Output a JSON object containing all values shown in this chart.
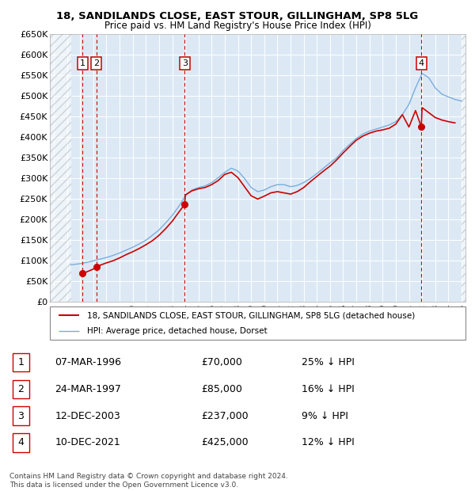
{
  "title": "18, SANDILANDS CLOSE, EAST STOUR, GILLINGHAM, SP8 5LG",
  "subtitle": "Price paid vs. HM Land Registry's House Price Index (HPI)",
  "ylim": [
    0,
    650000
  ],
  "yticks": [
    0,
    50000,
    100000,
    150000,
    200000,
    250000,
    300000,
    350000,
    400000,
    450000,
    500000,
    550000,
    600000,
    650000
  ],
  "ytick_labels": [
    "£0",
    "£50K",
    "£100K",
    "£150K",
    "£200K",
    "£250K",
    "£300K",
    "£350K",
    "£400K",
    "£450K",
    "£500K",
    "£550K",
    "£600K",
    "£650K"
  ],
  "xlim_start": 1993.7,
  "xlim_end": 2025.3,
  "hatch_end": 1995.3,
  "hatch_start_right": 2025.0,
  "background_color": "#dce9f5",
  "grid_color": "#ffffff",
  "transactions": [
    {
      "num": 1,
      "date": "07-MAR-1996",
      "year": 1996.19,
      "price": 70000
    },
    {
      "num": 2,
      "date": "24-MAR-1997",
      "year": 1997.23,
      "price": 85000
    },
    {
      "num": 3,
      "date": "12-DEC-2003",
      "year": 2003.95,
      "price": 237000
    },
    {
      "num": 4,
      "date": "10-DEC-2021",
      "year": 2021.94,
      "price": 425000
    }
  ],
  "transaction_table": [
    {
      "num": 1,
      "date": "07-MAR-1996",
      "price": "£70,000",
      "note": "25% ↓ HPI"
    },
    {
      "num": 2,
      "date": "24-MAR-1997",
      "price": "£85,000",
      "note": "16% ↓ HPI"
    },
    {
      "num": 3,
      "date": "12-DEC-2003",
      "price": "£237,000",
      "note": "9% ↓ HPI"
    },
    {
      "num": 4,
      "date": "10-DEC-2021",
      "price": "£425,000",
      "note": "12% ↓ HPI"
    }
  ],
  "legend_line1": "18, SANDILANDS CLOSE, EAST STOUR, GILLINGHAM, SP8 5LG (detached house)",
  "legend_line2": "HPI: Average price, detached house, Dorset",
  "footer": "Contains HM Land Registry data © Crown copyright and database right 2024.\nThis data is licensed under the Open Government Licence v3.0.",
  "red_color": "#cc0000",
  "blue_color": "#7aadde",
  "marker_box_color": "#cc0000",
  "vline_color": "#cc0000",
  "hpi_line": {
    "years": [
      1995.3,
      1995.5,
      1996.0,
      1996.5,
      1997.0,
      1997.5,
      1998.0,
      1998.5,
      1999.0,
      1999.5,
      2000.0,
      2000.5,
      2001.0,
      2001.5,
      2002.0,
      2002.5,
      2003.0,
      2003.5,
      2004.0,
      2004.5,
      2005.0,
      2005.5,
      2006.0,
      2006.5,
      2007.0,
      2007.5,
      2008.0,
      2008.5,
      2009.0,
      2009.5,
      2010.0,
      2010.5,
      2011.0,
      2011.5,
      2012.0,
      2012.5,
      2013.0,
      2013.5,
      2014.0,
      2014.5,
      2015.0,
      2015.5,
      2016.0,
      2016.5,
      2017.0,
      2017.5,
      2018.0,
      2018.5,
      2019.0,
      2019.5,
      2020.0,
      2020.5,
      2021.0,
      2021.5,
      2022.0,
      2022.5,
      2023.0,
      2023.5,
      2024.0,
      2024.5,
      2025.0
    ],
    "values": [
      90000,
      91000,
      93000,
      96000,
      100000,
      104000,
      108000,
      113000,
      119000,
      126000,
      133000,
      141000,
      150000,
      162000,
      175000,
      192000,
      210000,
      232000,
      258000,
      272000,
      278000,
      282000,
      290000,
      302000,
      315000,
      325000,
      318000,
      300000,
      278000,
      268000,
      272000,
      280000,
      285000,
      285000,
      280000,
      283000,
      290000,
      300000,
      312000,
      325000,
      338000,
      350000,
      368000,
      383000,
      397000,
      408000,
      415000,
      420000,
      425000,
      430000,
      438000,
      455000,
      480000,
      520000,
      555000,
      545000,
      520000,
      505000,
      498000,
      492000,
      488000
    ]
  },
  "price_line": {
    "years": [
      1996.19,
      1996.5,
      1997.0,
      1997.23,
      1997.5,
      1998.0,
      1998.5,
      1999.0,
      1999.5,
      2000.0,
      2000.5,
      2001.0,
      2001.5,
      2002.0,
      2002.5,
      2003.0,
      2003.5,
      2003.95,
      2004.0,
      2004.5,
      2005.0,
      2005.5,
      2006.0,
      2006.5,
      2007.0,
      2007.5,
      2008.0,
      2008.5,
      2009.0,
      2009.5,
      2010.0,
      2010.5,
      2011.0,
      2011.5,
      2012.0,
      2012.5,
      2013.0,
      2013.5,
      2014.0,
      2014.5,
      2015.0,
      2015.5,
      2016.0,
      2016.5,
      2017.0,
      2017.5,
      2018.0,
      2018.5,
      2019.0,
      2019.5,
      2020.0,
      2020.5,
      2021.0,
      2021.5,
      2021.94,
      2022.0,
      2022.5,
      2023.0,
      2023.5,
      2024.0,
      2024.5
    ],
    "values": [
      70000,
      73000,
      80000,
      85000,
      89000,
      95000,
      100000,
      107000,
      115000,
      122000,
      130000,
      139000,
      149000,
      162000,
      178000,
      196000,
      218000,
      237000,
      260000,
      270000,
      275000,
      278000,
      285000,
      295000,
      310000,
      315000,
      302000,
      280000,
      258000,
      250000,
      257000,
      265000,
      268000,
      265000,
      262000,
      268000,
      278000,
      292000,
      305000,
      318000,
      330000,
      345000,
      362000,
      378000,
      393000,
      403000,
      410000,
      415000,
      418000,
      422000,
      432000,
      455000,
      425000,
      465000,
      425000,
      472000,
      460000,
      448000,
      442000,
      438000,
      435000
    ]
  }
}
